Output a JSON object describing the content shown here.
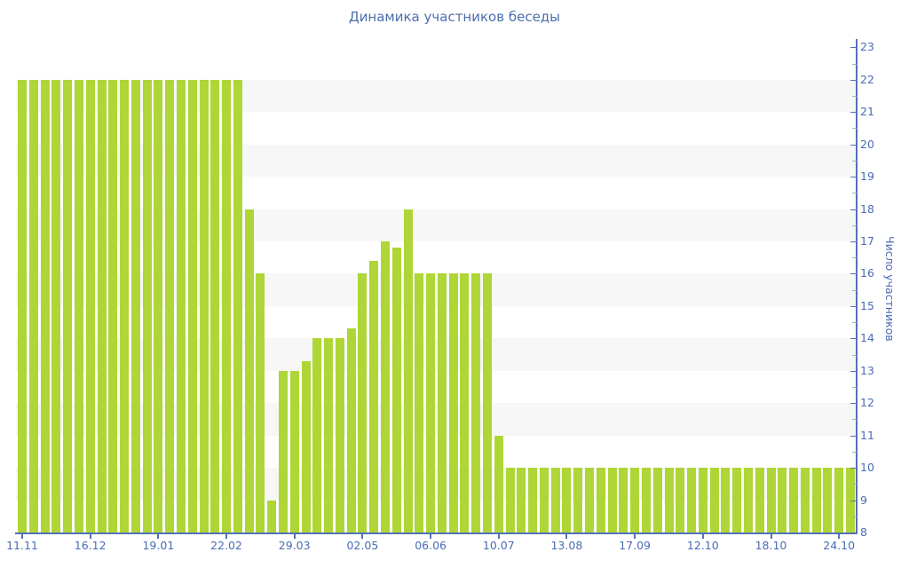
{
  "title": "Динамика участников беседы",
  "chart_data": {
    "type": "bar",
    "title": "Динамика участников беседы",
    "ylabel": "Число участников",
    "xlabel": "",
    "ylim": [
      8,
      23
    ],
    "y_tick_step": 1,
    "y_minor_tick_step": 0.5,
    "y_tick_labels": [
      "8",
      "9",
      "10",
      "11",
      "12",
      "13",
      "14",
      "15",
      "16",
      "17",
      "18",
      "19",
      "20",
      "21",
      "22",
      "23"
    ],
    "grid": "alternating horizontal bands",
    "legend": "none",
    "x_axis_labels": [
      {
        "label": "11.11",
        "bar_index": 0
      },
      {
        "label": "16.12",
        "bar_index": 6
      },
      {
        "label": "19.01",
        "bar_index": 12
      },
      {
        "label": "22.02",
        "bar_index": 18
      },
      {
        "label": "29.03",
        "bar_index": 24
      },
      {
        "label": "02.05",
        "bar_index": 30
      },
      {
        "label": "06.06",
        "bar_index": 36
      },
      {
        "label": "10.07",
        "bar_index": 42
      },
      {
        "label": "13.08",
        "bar_index": 48
      },
      {
        "label": "17.09",
        "bar_index": 54
      },
      {
        "label": "12.10",
        "bar_index": 60
      },
      {
        "label": "18.10",
        "bar_index": 66
      },
      {
        "label": "24.10",
        "bar_index": 72
      }
    ],
    "values": [
      22,
      22,
      22,
      22,
      22,
      22,
      22,
      22,
      22,
      22,
      22,
      22,
      22,
      22,
      22,
      22,
      22,
      22,
      22,
      22,
      18,
      16,
      9,
      13,
      13,
      13.3,
      14,
      14,
      14,
      14.3,
      16,
      16.4,
      17,
      16.8,
      18,
      16,
      16,
      16,
      16,
      16,
      16,
      16,
      11,
      10,
      10,
      10,
      10,
      10,
      10,
      10,
      10,
      10,
      10,
      10,
      10,
      10,
      10,
      10,
      10,
      10,
      10,
      10,
      10,
      10,
      10,
      10,
      10,
      10,
      10,
      10,
      10,
      10,
      10,
      10
    ],
    "colors": {
      "bar": "#aed636",
      "axis_line": "#5272b8",
      "tick_label": "#4a6cb5",
      "title": "#4c6eae",
      "band": "#f7f7f7",
      "minor_tick": "#aab0bc",
      "background": "#ffffff"
    }
  }
}
